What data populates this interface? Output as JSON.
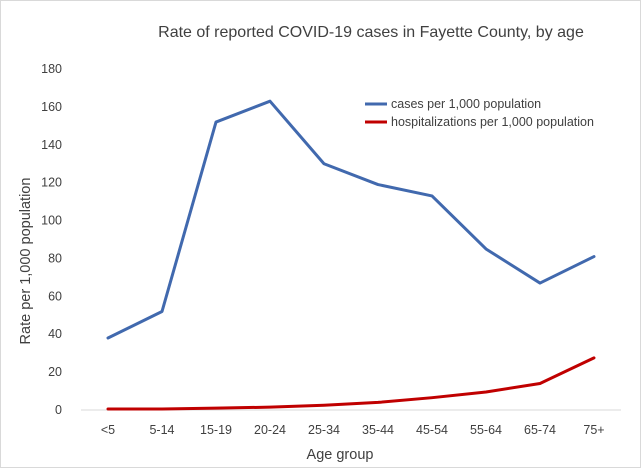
{
  "chart_data": {
    "type": "line",
    "title": "Rate of reported COVID-19 cases in Fayette County, by age",
    "xlabel": "Age group",
    "ylabel": "Rate per 1,000 population",
    "ylim": [
      0,
      180
    ],
    "yticks": [
      0,
      20,
      40,
      60,
      80,
      100,
      120,
      140,
      160,
      180
    ],
    "grid": false,
    "legend_position": "top-right",
    "categories": [
      "<5",
      "5-14",
      "15-19",
      "20-24",
      "25-34",
      "35-44",
      "45-54",
      "55-64",
      "65-74",
      "75+"
    ],
    "series": [
      {
        "name": "cases per 1,000 population",
        "color": "#4169AE",
        "values": [
          38,
          52,
          152,
          163,
          130,
          119,
          113,
          85,
          67,
          81
        ]
      },
      {
        "name": "hospitalizations per 1,000 population",
        "color": "#C00000",
        "values": [
          0.5,
          0.5,
          1,
          1.5,
          2.5,
          4,
          6.5,
          9.5,
          14,
          27.5
        ]
      }
    ]
  }
}
